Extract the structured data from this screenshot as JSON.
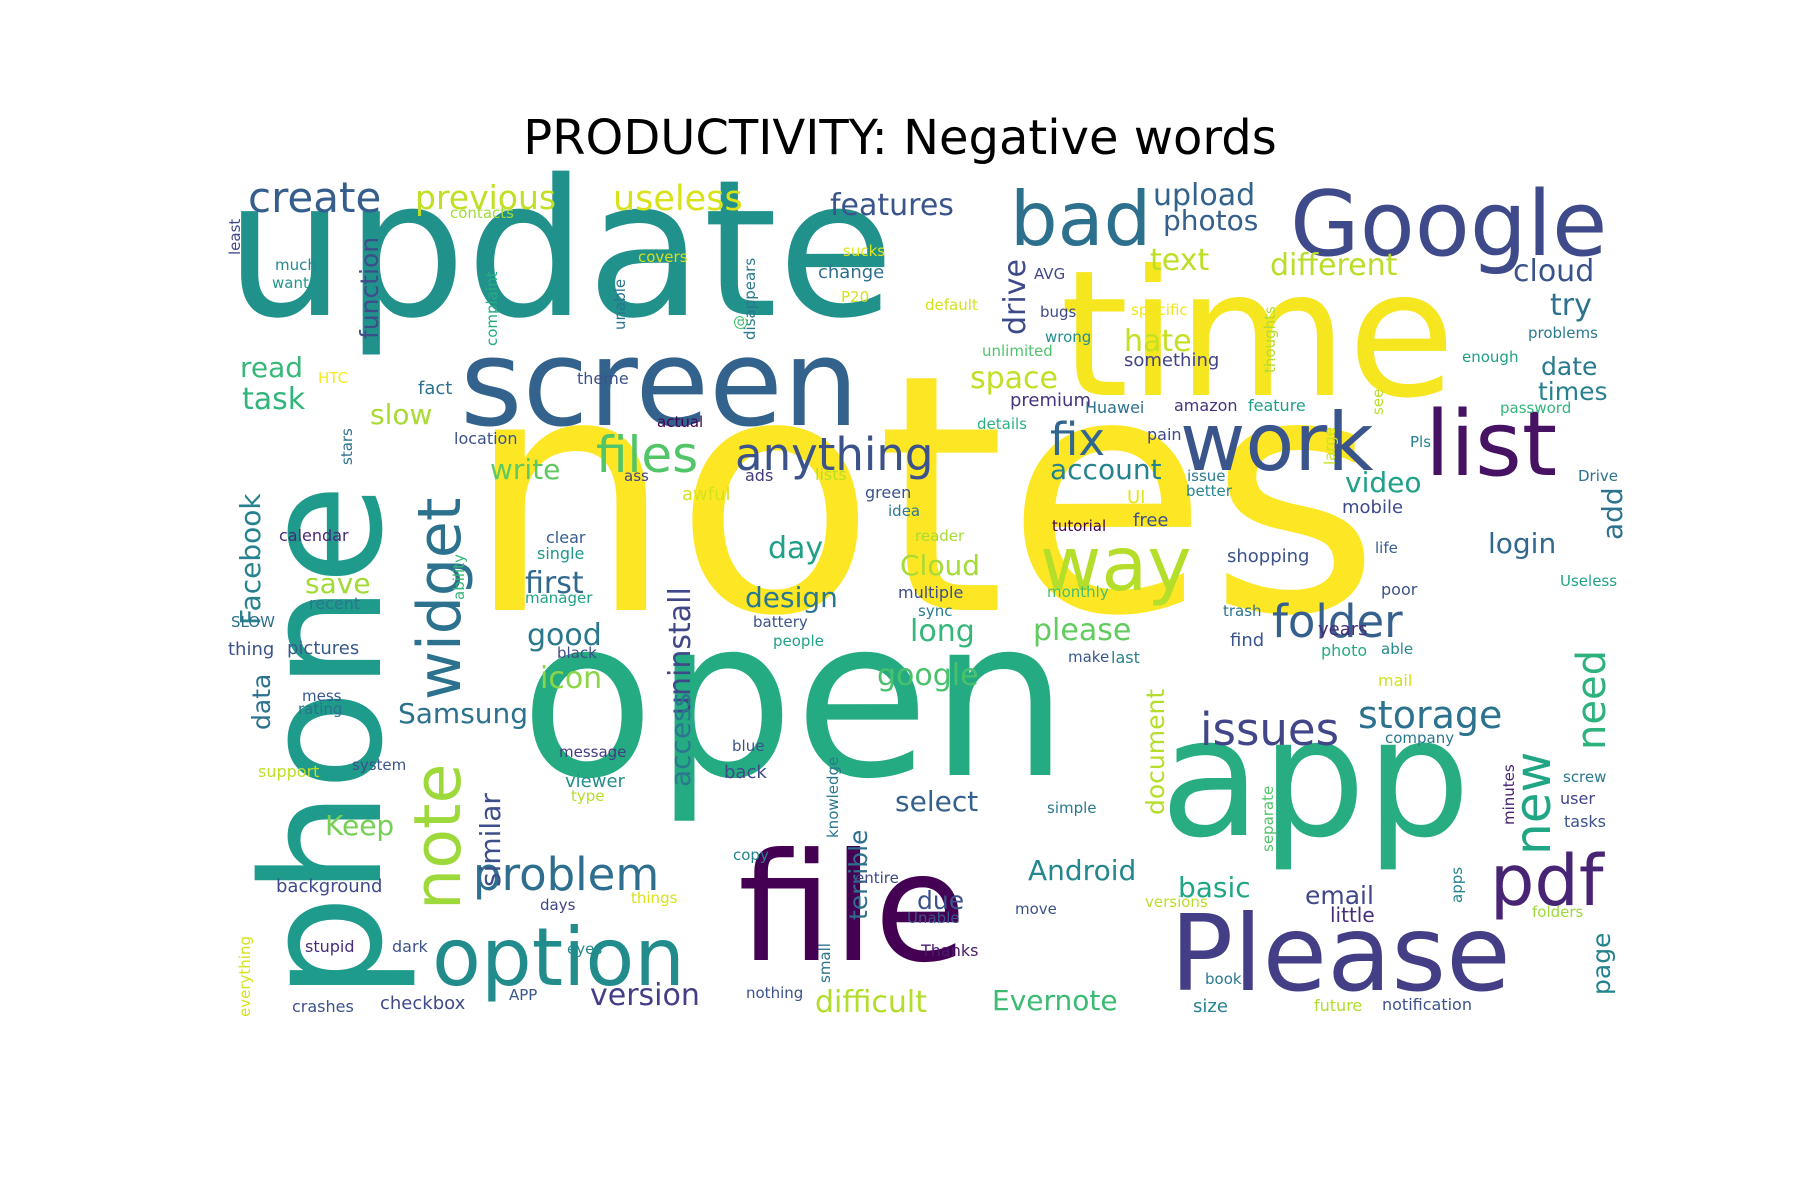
{
  "chart_data": {
    "type": "wordcloud",
    "title": "PRODUCTIVITY: Negative words",
    "palette": "viridis",
    "words": [
      {
        "text": "notes",
        "color": "#fde725"
      },
      {
        "text": "open",
        "color": "#25ab82"
      },
      {
        "text": "update",
        "color": "#21918c"
      },
      {
        "text": "phone",
        "color": "#1e9b8a"
      },
      {
        "text": "time",
        "color": "#f6e620"
      },
      {
        "text": "app",
        "color": "#27ad81"
      },
      {
        "text": "file",
        "color": "#440154"
      },
      {
        "text": "screen",
        "color": "#33638d"
      },
      {
        "text": "Please",
        "color": "#433e85"
      },
      {
        "text": "work",
        "color": "#3a548c"
      },
      {
        "text": "list",
        "color": "#471164"
      },
      {
        "text": "Google",
        "color": "#3e4a89"
      },
      {
        "text": "bad",
        "color": "#2d708e"
      },
      {
        "text": "option",
        "color": "#228c8d"
      },
      {
        "text": "way",
        "color": "#b5de2b"
      },
      {
        "text": "widget",
        "color": "#2c728e"
      },
      {
        "text": "note",
        "color": "#9dd93b"
      },
      {
        "text": "pdf",
        "color": "#482475"
      },
      {
        "text": "new",
        "color": "#21a685"
      },
      {
        "text": "anything",
        "color": "#3b528b"
      },
      {
        "text": "files",
        "color": "#52c569"
      },
      {
        "text": "problem",
        "color": "#2e6e8e"
      },
      {
        "text": "fix",
        "color": "#31668e"
      },
      {
        "text": "folder",
        "color": "#355f8d"
      },
      {
        "text": "issues",
        "color": "#404688"
      },
      {
        "text": "storage",
        "color": "#2c728e"
      },
      {
        "text": "need",
        "color": "#2db27d"
      },
      {
        "text": "create",
        "color": "#355e8d"
      },
      {
        "text": "useless",
        "color": "#d8e219"
      },
      {
        "text": "previous",
        "color": "#c2df23"
      },
      {
        "text": "features",
        "color": "#3a548c"
      },
      {
        "text": "upload",
        "color": "#33638d"
      },
      {
        "text": "photos",
        "color": "#355f8d"
      },
      {
        "text": "text",
        "color": "#bddf26"
      },
      {
        "text": "different",
        "color": "#b8de29"
      },
      {
        "text": "cloud",
        "color": "#3a538b"
      },
      {
        "text": "try",
        "color": "#2c718e"
      },
      {
        "text": "drive",
        "color": "#3e4989"
      },
      {
        "text": "hate",
        "color": "#c5e021"
      },
      {
        "text": "date",
        "color": "#297a8e"
      },
      {
        "text": "times",
        "color": "#27808e"
      },
      {
        "text": "space",
        "color": "#c0df25"
      },
      {
        "text": "account",
        "color": "#26828e"
      },
      {
        "text": "video",
        "color": "#1fa088"
      },
      {
        "text": "add",
        "color": "#2c728e"
      },
      {
        "text": "login",
        "color": "#31688e"
      },
      {
        "text": "function",
        "color": "#3e4c8a"
      },
      {
        "text": "read",
        "color": "#37b878"
      },
      {
        "text": "task",
        "color": "#31b57b"
      },
      {
        "text": "slow",
        "color": "#a8db34"
      },
      {
        "text": "write",
        "color": "#5ec962"
      },
      {
        "text": "Facebook",
        "color": "#26828e"
      },
      {
        "text": "save",
        "color": "#a2da37"
      },
      {
        "text": "day",
        "color": "#1fa187"
      },
      {
        "text": "first",
        "color": "#31688e"
      },
      {
        "text": "design",
        "color": "#2a768e"
      },
      {
        "text": "Cloud",
        "color": "#a5db36"
      },
      {
        "text": "good",
        "color": "#2a788e"
      },
      {
        "text": "uninstall",
        "color": "#3f4788"
      },
      {
        "text": "long",
        "color": "#35b779"
      },
      {
        "text": "please",
        "color": "#62cb5f"
      },
      {
        "text": "icon",
        "color": "#8bd646"
      },
      {
        "text": "google",
        "color": "#4ac16d"
      },
      {
        "text": "access",
        "color": "#2a788e"
      },
      {
        "text": "Samsung",
        "color": "#2c718e"
      },
      {
        "text": "data",
        "color": "#2c728e"
      },
      {
        "text": "similar",
        "color": "#3c4f8a"
      },
      {
        "text": "Keep",
        "color": "#75d054"
      },
      {
        "text": "select",
        "color": "#34618d"
      },
      {
        "text": "Android",
        "color": "#24878e"
      },
      {
        "text": "basic",
        "color": "#21a685"
      },
      {
        "text": "document",
        "color": "#b5de2b"
      },
      {
        "text": "email",
        "color": "#3f4889"
      },
      {
        "text": "due",
        "color": "#3b528b"
      },
      {
        "text": "terrible",
        "color": "#2e6f8e"
      },
      {
        "text": "version",
        "color": "#433e85"
      },
      {
        "text": "difficult",
        "color": "#b2dd2d"
      },
      {
        "text": "Evernote",
        "color": "#3cbb75"
      },
      {
        "text": "page",
        "color": "#25838e"
      },
      {
        "text": "little",
        "color": "#472d7b"
      },
      {
        "text": "contacts",
        "color": "#a2da37"
      },
      {
        "text": "least",
        "color": "#3e4a89"
      },
      {
        "text": "much",
        "color": "#23898e"
      },
      {
        "text": "want",
        "color": "#1f998a"
      },
      {
        "text": "covers",
        "color": "#d0e11c"
      },
      {
        "text": "sucks",
        "color": "#e2e418"
      },
      {
        "text": "change",
        "color": "#2d708e"
      },
      {
        "text": "P20",
        "color": "#d5e21a"
      },
      {
        "text": "AVG",
        "color": "#3f4788"
      },
      {
        "text": "complaint",
        "color": "#26ad81"
      },
      {
        "text": "disappears",
        "color": "#2a788e"
      },
      {
        "text": "unable",
        "color": "#2b758e"
      },
      {
        "text": "default",
        "color": "#d2e21b"
      },
      {
        "text": "bugs",
        "color": "#3e4989"
      },
      {
        "text": "wrong",
        "color": "#21908d"
      },
      {
        "text": "unlimited",
        "color": "#4ec36b"
      },
      {
        "text": "specific",
        "color": "#f1e51d"
      },
      {
        "text": "something",
        "color": "#414487"
      },
      {
        "text": "thoughts",
        "color": "#b0dd2f"
      },
      {
        "text": "enough",
        "color": "#1f9f88"
      },
      {
        "text": "problems",
        "color": "#2a788e"
      },
      {
        "text": "password",
        "color": "#32b67a"
      },
      {
        "text": "HTC",
        "color": "#f8e621"
      },
      {
        "text": "fact",
        "color": "#2d708e"
      },
      {
        "text": "theme",
        "color": "#3b518b"
      },
      {
        "text": "premium",
        "color": "#46337f"
      },
      {
        "text": "Huawei",
        "color": "#2d718e"
      },
      {
        "text": "amazon",
        "color": "#46327e"
      },
      {
        "text": "feature",
        "color": "#1f9e89"
      },
      {
        "text": "see",
        "color": "#bade28"
      },
      {
        "text": "details",
        "color": "#2ab07f"
      },
      {
        "text": "actual",
        "color": "#440154"
      },
      {
        "text": "stars",
        "color": "#2d708e"
      },
      {
        "text": "location",
        "color": "#3b528b"
      },
      {
        "text": "pain",
        "color": "#3e4989"
      },
      {
        "text": "large",
        "color": "#cde11d"
      },
      {
        "text": "Pls",
        "color": "#26828e"
      },
      {
        "text": "Drive",
        "color": "#2c728e"
      },
      {
        "text": "ass",
        "color": "#414487"
      },
      {
        "text": "ads",
        "color": "#443983"
      },
      {
        "text": "lists",
        "color": "#bade28"
      },
      {
        "text": "issue",
        "color": "#297b8e"
      },
      {
        "text": "awful",
        "color": "#d5e21a"
      },
      {
        "text": "green",
        "color": "#3b528b"
      },
      {
        "text": "UI",
        "color": "#e5e419"
      },
      {
        "text": "better",
        "color": "#24868e"
      },
      {
        "text": "mobile",
        "color": "#3e4a89"
      },
      {
        "text": "idea",
        "color": "#2a788e"
      },
      {
        "text": "free",
        "color": "#3b528b"
      },
      {
        "text": "calendar",
        "color": "#482878"
      },
      {
        "text": "clear",
        "color": "#365c8d"
      },
      {
        "text": "single",
        "color": "#1f988b"
      },
      {
        "text": "reader",
        "color": "#a8db34"
      },
      {
        "text": "shopping",
        "color": "#3b528b"
      },
      {
        "text": "life",
        "color": "#375b8d"
      },
      {
        "text": "ability",
        "color": "#35b779"
      },
      {
        "text": "recent",
        "color": "#2a768e"
      },
      {
        "text": "manager",
        "color": "#20a386"
      },
      {
        "text": "multiple",
        "color": "#3e4c8a"
      },
      {
        "text": "monthly",
        "color": "#42be71"
      },
      {
        "text": "poor",
        "color": "#3b528b"
      },
      {
        "text": "Useless",
        "color": "#20a386"
      },
      {
        "text": "SLOW",
        "color": "#2d708e"
      },
      {
        "text": "thing",
        "color": "#3b528b"
      },
      {
        "text": "pictures",
        "color": "#375a8c"
      },
      {
        "text": "trash",
        "color": "#2c728e"
      },
      {
        "text": "battery",
        "color": "#3b528b"
      },
      {
        "text": "black",
        "color": "#3e4c8a"
      },
      {
        "text": "people",
        "color": "#1fa187"
      },
      {
        "text": "sync",
        "color": "#297b8e"
      },
      {
        "text": "make",
        "color": "#39568c"
      },
      {
        "text": "last",
        "color": "#26828e"
      },
      {
        "text": "find",
        "color": "#39558c"
      },
      {
        "text": "years",
        "color": "#472c7a"
      },
      {
        "text": "photo",
        "color": "#25ab82"
      },
      {
        "text": "able",
        "color": "#23898e"
      },
      {
        "text": "mess",
        "color": "#39568c"
      },
      {
        "text": "rating",
        "color": "#2c718e"
      },
      {
        "text": "mail",
        "color": "#d0e11c"
      },
      {
        "text": "company",
        "color": "#2a788e"
      },
      {
        "text": "support",
        "color": "#bddf26"
      },
      {
        "text": "system",
        "color": "#3b528b"
      },
      {
        "text": "message",
        "color": "#443a83"
      },
      {
        "text": "blue",
        "color": "#3b528b"
      },
      {
        "text": "back",
        "color": "#3e4989"
      },
      {
        "text": "knowledge",
        "color": "#2a788e"
      },
      {
        "text": "viewer",
        "color": "#218f8d"
      },
      {
        "text": "type",
        "color": "#b5de2b"
      },
      {
        "text": "minutes",
        "color": "#482071"
      },
      {
        "text": "separate",
        "color": "#52c569"
      },
      {
        "text": "screw",
        "color": "#2a768e"
      },
      {
        "text": "user",
        "color": "#414487"
      },
      {
        "text": "tasks",
        "color": "#3b528b"
      },
      {
        "text": "simple",
        "color": "#2a788e"
      },
      {
        "text": "copy",
        "color": "#25838e"
      },
      {
        "text": "background",
        "color": "#3e4a89"
      },
      {
        "text": "things",
        "color": "#d8e219"
      },
      {
        "text": "days",
        "color": "#404588"
      },
      {
        "text": "entire",
        "color": "#3e4989"
      },
      {
        "text": "small",
        "color": "#2c728e"
      },
      {
        "text": "Unable",
        "color": "#3b528b"
      },
      {
        "text": "move",
        "color": "#3b528b"
      },
      {
        "text": "versions",
        "color": "#bade28"
      },
      {
        "text": "apps",
        "color": "#25848e"
      },
      {
        "text": "folders",
        "color": "#9dd93b"
      },
      {
        "text": "everything",
        "color": "#d5e21a"
      },
      {
        "text": "stupid",
        "color": "#472d7b"
      },
      {
        "text": "dark",
        "color": "#3b528b"
      },
      {
        "text": "eyes",
        "color": "#23898e"
      },
      {
        "text": "Thanks",
        "color": "#481b6d"
      },
      {
        "text": "crashes",
        "color": "#3b528b"
      },
      {
        "text": "checkbox",
        "color": "#3e4989"
      },
      {
        "text": "APP",
        "color": "#39568c"
      },
      {
        "text": "nothing",
        "color": "#3b528b"
      },
      {
        "text": "book",
        "color": "#2a788e"
      },
      {
        "text": "size",
        "color": "#26828e"
      },
      {
        "text": "future",
        "color": "#b0dd2f"
      },
      {
        "text": "notification",
        "color": "#3b528b"
      },
      {
        "text": "tutorial",
        "color": "#440154"
      },
      {
        "text": "@",
        "color": "#44bf70"
      }
    ]
  }
}
